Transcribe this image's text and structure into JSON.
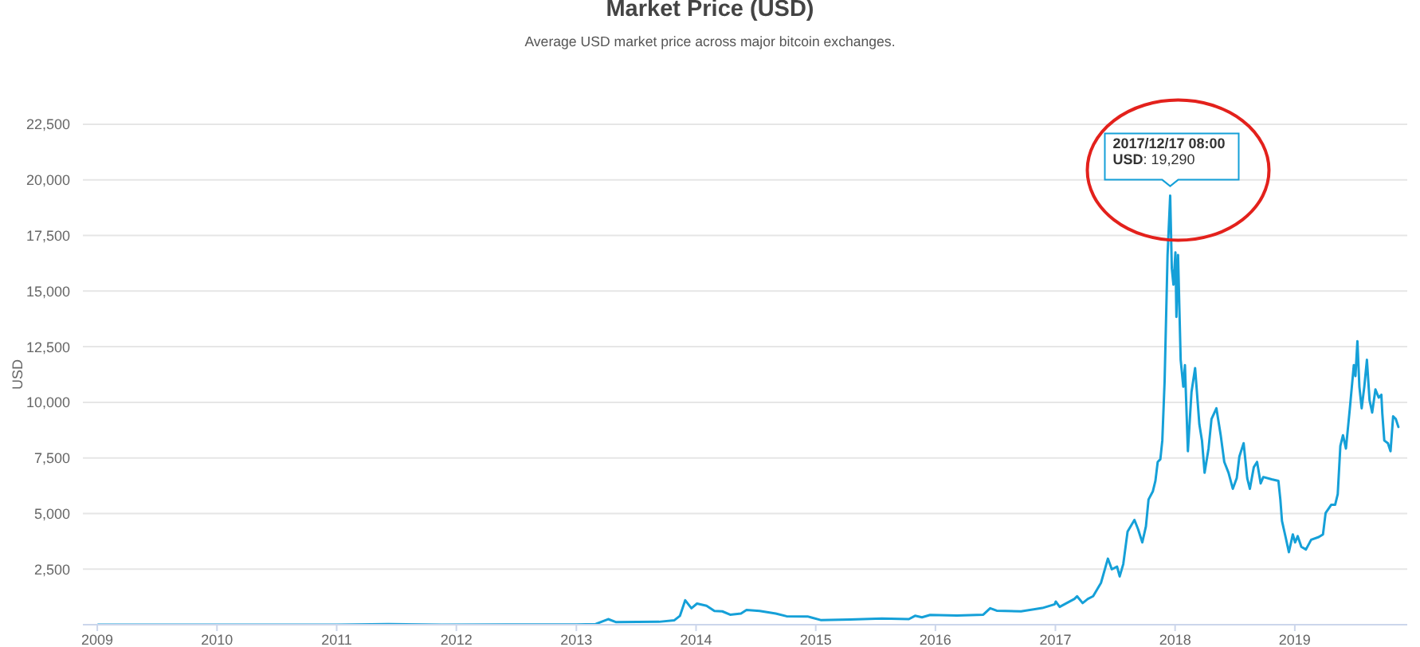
{
  "chart_data": {
    "type": "line",
    "title": "Market Price (USD)",
    "subtitle": "Average USD market price across major bitcoin exchanges.",
    "ylabel": "USD",
    "color": "#15a0d8",
    "x": [
      "2009-01-03",
      "2010-01-01",
      "2010-07-17",
      "2011-01-01",
      "2011-06-08",
      "2011-11-18",
      "2012-06-01",
      "2013-01-01",
      "2013-03-01",
      "2013-04-08",
      "2013-05-01",
      "2013-09-10",
      "2013-10-27",
      "2013-11-13",
      "2013-11-29",
      "2013-12-18",
      "2014-01-04",
      "2014-02-02",
      "2014-02-26",
      "2014-03-22",
      "2014-04-15",
      "2014-05-18",
      "2014-06-04",
      "2014-07-14",
      "2014-09-01",
      "2014-10-04",
      "2014-12-07",
      "2015-01-16",
      "2015-04-16",
      "2015-07-22",
      "2015-10-12",
      "2015-10-31",
      "2015-11-21",
      "2015-12-16",
      "2016-03-07",
      "2016-05-26",
      "2016-06-16",
      "2016-07-06",
      "2016-09-18",
      "2016-11-22",
      "2016-12-30",
      "2017-01-02",
      "2017-01-14",
      "2017-02-28",
      "2017-03-08",
      "2017-03-25",
      "2017-04-10",
      "2017-04-26",
      "2017-05-20",
      "2017-06-10",
      "2017-06-22",
      "2017-07-08",
      "2017-07-16",
      "2017-07-27",
      "2017-08-09",
      "2017-08-30",
      "2017-09-10",
      "2017-09-23",
      "2017-10-04",
      "2017-10-12",
      "2017-10-25",
      "2017-11-02",
      "2017-11-09",
      "2017-11-17",
      "2017-11-23",
      "2017-11-30",
      "2017-12-09",
      "2017-12-17",
      "2017-12-22",
      "2017-12-27",
      "2018-01-02",
      "2018-01-05",
      "2018-01-10",
      "2018-01-18",
      "2018-01-26",
      "2018-01-31",
      "2018-02-09",
      "2018-02-20",
      "2018-03-03",
      "2018-03-16",
      "2018-03-24",
      "2018-04-01",
      "2018-04-13",
      "2018-04-22",
      "2018-05-07",
      "2018-05-20",
      "2018-05-31",
      "2018-06-13",
      "2018-06-26",
      "2018-07-08",
      "2018-07-16",
      "2018-07-29",
      "2018-08-09",
      "2018-08-17",
      "2018-08-29",
      "2018-09-08",
      "2018-09-19",
      "2018-09-27",
      "2018-10-22",
      "2018-11-12",
      "2018-11-18",
      "2018-11-23",
      "2018-12-04",
      "2018-12-14",
      "2018-12-26",
      "2019-01-02",
      "2019-01-10",
      "2019-01-21",
      "2019-02-04",
      "2019-02-20",
      "2019-03-15",
      "2019-03-28",
      "2019-04-05",
      "2019-04-22",
      "2019-05-04",
      "2019-05-12",
      "2019-05-20",
      "2019-05-28",
      "2019-06-06",
      "2019-06-18",
      "2019-06-30",
      "2019-07-05",
      "2019-07-11",
      "2019-07-17",
      "2019-07-24",
      "2019-08-01",
      "2019-08-09",
      "2019-08-17",
      "2019-08-25",
      "2019-09-04",
      "2019-09-14",
      "2019-09-22",
      "2019-09-25",
      "2019-10-01",
      "2019-10-12",
      "2019-10-20",
      "2019-10-28",
      "2019-11-05",
      "2019-11-13"
    ],
    "values": [
      0,
      0,
      0,
      0,
      30,
      0,
      10,
      10,
      30,
      250,
      120,
      130,
      200,
      400,
      1100,
      740,
      950,
      850,
      620,
      600,
      450,
      500,
      660,
      620,
      500,
      380,
      370,
      210,
      230,
      280,
      250,
      400,
      330,
      440,
      410,
      450,
      740,
      630,
      600,
      750,
      920,
      1040,
      800,
      1160,
      1280,
      970,
      1160,
      1280,
      1880,
      2970,
      2490,
      2610,
      2170,
      2730,
      4180,
      4710,
      4300,
      3700,
      4420,
      5630,
      5990,
      6470,
      7320,
      7440,
      8280,
      10940,
      16620,
      19290,
      16010,
      15290,
      16740,
      13840,
      16620,
      11910,
      10700,
      11670,
      7800,
      10460,
      11540,
      9010,
      8280,
      6830,
      7920,
      9250,
      9730,
      8530,
      7320,
      6830,
      6110,
      6590,
      7560,
      8160,
      6590,
      6110,
      7080,
      7320,
      6350,
      6640,
      6540,
      6470,
      5630,
      4660,
      3940,
      3260,
      4060,
      3700,
      3980,
      3500,
      3380,
      3820,
      3940,
      4060,
      5020,
      5390,
      5390,
      5870,
      8040,
      8520,
      7920,
      9730,
      11670,
      11180,
      12750,
      10700,
      9730,
      10700,
      11910,
      10100,
      9540,
      10580,
      10210,
      10340,
      9490,
      8280,
      8160,
      7800,
      9370,
      9250,
      8890
    ],
    "xlim": [
      "2008-11-18",
      "2019-12-10"
    ],
    "xticks": [
      "2009",
      "2010",
      "2011",
      "2012",
      "2013",
      "2014",
      "2015",
      "2016",
      "2017",
      "2018",
      "2019"
    ],
    "ylim": [
      0,
      22500
    ],
    "yticks": [
      {
        "value": 2500,
        "label": "2,500"
      },
      {
        "value": 5000,
        "label": "5,000"
      },
      {
        "value": 7500,
        "label": "7,500"
      },
      {
        "value": 10000,
        "label": "10,000"
      },
      {
        "value": 12500,
        "label": "12,500"
      },
      {
        "value": 15000,
        "label": "15,000"
      },
      {
        "value": 17500,
        "label": "17,500"
      },
      {
        "value": 20000,
        "label": "20,000"
      },
      {
        "value": 22500,
        "label": "22,500"
      }
    ],
    "grid": "y",
    "annotations": [
      {
        "text": "2017/12/17 08:00\nUSD: 19,290",
        "x": "2017-12-17",
        "y": 19290
      }
    ]
  }
}
